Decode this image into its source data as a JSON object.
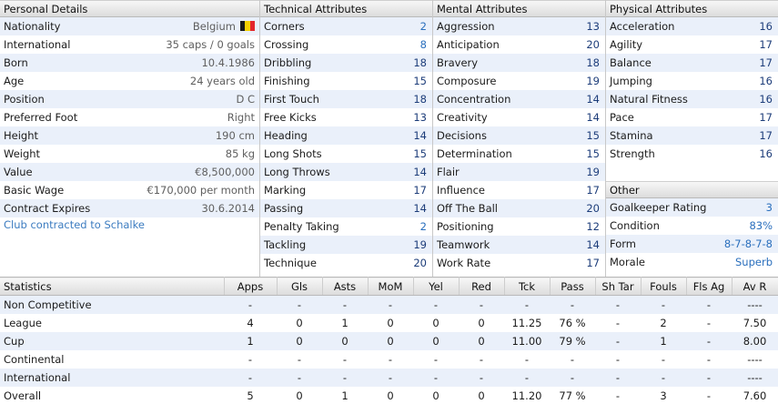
{
  "personal": {
    "header": "Personal Details",
    "rows": [
      {
        "label": "Nationality",
        "value": "Belgium"
      },
      {
        "label": "International",
        "value": "35 caps / 0 goals"
      },
      {
        "label": "Born",
        "value": "10.4.1986"
      },
      {
        "label": "Age",
        "value": "24 years old"
      },
      {
        "label": "Position",
        "value": "D C"
      },
      {
        "label": "Preferred Foot",
        "value": "Right"
      },
      {
        "label": "Height",
        "value": "190 cm"
      },
      {
        "label": "Weight",
        "value": "85 kg"
      },
      {
        "label": "Value",
        "value": "€8,500,000"
      },
      {
        "label": "Basic Wage",
        "value": "€170,000 per month"
      },
      {
        "label": "Contract Expires",
        "value": "30.6.2014"
      }
    ],
    "club_link": "Club contracted to Schalke",
    "flag_colors": [
      "#1a1a1a",
      "#f5d000",
      "#e3262c"
    ]
  },
  "technical": {
    "header": "Technical Attributes",
    "rows": [
      {
        "label": "Corners",
        "value": "2"
      },
      {
        "label": "Crossing",
        "value": "8"
      },
      {
        "label": "Dribbling",
        "value": "18"
      },
      {
        "label": "Finishing",
        "value": "15"
      },
      {
        "label": "First Touch",
        "value": "18"
      },
      {
        "label": "Free Kicks",
        "value": "13"
      },
      {
        "label": "Heading",
        "value": "14"
      },
      {
        "label": "Long Shots",
        "value": "15"
      },
      {
        "label": "Long Throws",
        "value": "14"
      },
      {
        "label": "Marking",
        "value": "17"
      },
      {
        "label": "Passing",
        "value": "14"
      },
      {
        "label": "Penalty Taking",
        "value": "2"
      },
      {
        "label": "Tackling",
        "value": "19"
      },
      {
        "label": "Technique",
        "value": "20"
      }
    ]
  },
  "mental": {
    "header": "Mental Attributes",
    "rows": [
      {
        "label": "Aggression",
        "value": "13"
      },
      {
        "label": "Anticipation",
        "value": "20"
      },
      {
        "label": "Bravery",
        "value": "18"
      },
      {
        "label": "Composure",
        "value": "19"
      },
      {
        "label": "Concentration",
        "value": "14"
      },
      {
        "label": "Creativity",
        "value": "14"
      },
      {
        "label": "Decisions",
        "value": "15"
      },
      {
        "label": "Determination",
        "value": "15"
      },
      {
        "label": "Flair",
        "value": "19"
      },
      {
        "label": "Influence",
        "value": "17"
      },
      {
        "label": "Off The Ball",
        "value": "20"
      },
      {
        "label": "Positioning",
        "value": "12"
      },
      {
        "label": "Teamwork",
        "value": "14"
      },
      {
        "label": "Work Rate",
        "value": "17"
      }
    ]
  },
  "physical": {
    "header": "Physical Attributes",
    "rows": [
      {
        "label": "Acceleration",
        "value": "16"
      },
      {
        "label": "Agility",
        "value": "17"
      },
      {
        "label": "Balance",
        "value": "17"
      },
      {
        "label": "Jumping",
        "value": "16"
      },
      {
        "label": "Natural Fitness",
        "value": "16"
      },
      {
        "label": "Pace",
        "value": "17"
      },
      {
        "label": "Stamina",
        "value": "17"
      },
      {
        "label": "Strength",
        "value": "16"
      }
    ]
  },
  "other": {
    "header": "Other",
    "rows": [
      {
        "label": "Goalkeeper Rating",
        "value": "3"
      },
      {
        "label": "Condition",
        "value": "83%"
      },
      {
        "label": "Form",
        "value": "8-7-8-7-8"
      },
      {
        "label": "Morale",
        "value": "Superb"
      }
    ]
  },
  "stats": {
    "columns": [
      "Statistics",
      "Apps",
      "Gls",
      "Asts",
      "MoM",
      "Yel",
      "Red",
      "Tck",
      "Pass",
      "Sh Tar",
      "Fouls",
      "Fls Ag",
      "Av R"
    ],
    "rows": [
      [
        "Non Competitive",
        "-",
        "-",
        "-",
        "-",
        "-",
        "-",
        "-",
        "-",
        "-",
        "-",
        "-",
        "----"
      ],
      [
        "League",
        "4",
        "0",
        "1",
        "0",
        "0",
        "0",
        "11.25",
        "76 %",
        "-",
        "2",
        "-",
        "7.50"
      ],
      [
        "Cup",
        "1",
        "0",
        "0",
        "0",
        "0",
        "0",
        "11.00",
        "79 %",
        "-",
        "1",
        "-",
        "8.00"
      ],
      [
        "Continental",
        "-",
        "-",
        "-",
        "-",
        "-",
        "-",
        "-",
        "-",
        "-",
        "-",
        "-",
        "----"
      ],
      [
        "International",
        "-",
        "-",
        "-",
        "-",
        "-",
        "-",
        "-",
        "-",
        "-",
        "-",
        "-",
        "----"
      ],
      [
        "Overall",
        "5",
        "0",
        "1",
        "0",
        "0",
        "0",
        "11.20",
        "77 %",
        "-",
        "3",
        "-",
        "7.60"
      ]
    ]
  }
}
